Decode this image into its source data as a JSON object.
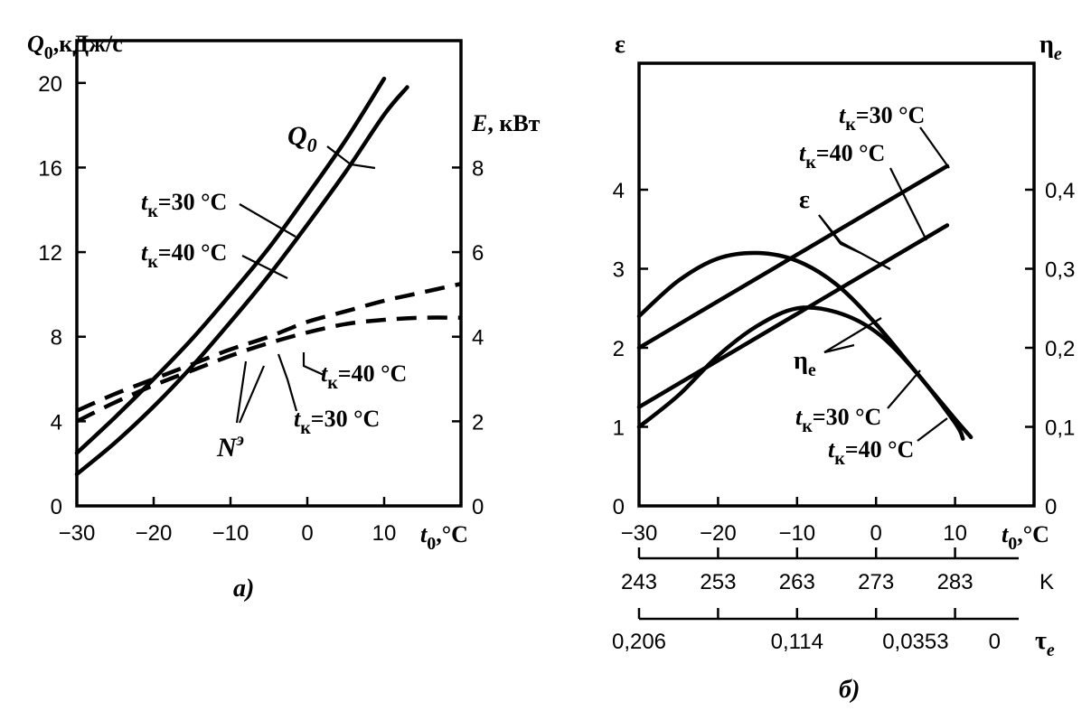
{
  "chart_data": [
    {
      "type": "line",
      "caption": "a)",
      "x_axis": {
        "label": "t",
        "label_sub": "0",
        "label_unit": ",°C",
        "range": [
          -30,
          20
        ],
        "ticks": [
          -30,
          -20,
          -10,
          0,
          10
        ]
      },
      "y_left": {
        "label": "Q",
        "label_sub": "0",
        "label_unit": ",кДж/с",
        "range": [
          0,
          22
        ],
        "ticks": [
          0,
          4,
          8,
          12,
          16,
          20
        ]
      },
      "y_right": {
        "label": "E",
        "label_unit": ", кВт",
        "range": [
          0,
          11
        ],
        "ticks": [
          0,
          2,
          4,
          6,
          8
        ]
      },
      "series": [
        {
          "name": "Q0, tк=30 °C",
          "axis": "left",
          "style": "solid",
          "x": [
            -30,
            -25,
            -20,
            -15,
            -10,
            -5,
            0,
            5,
            10
          ],
          "y": [
            2.5,
            4.2,
            6.0,
            7.9,
            10.0,
            12.2,
            14.7,
            17.3,
            20.2
          ]
        },
        {
          "name": "Q0, tк=40 °C",
          "axis": "left",
          "style": "solid",
          "x": [
            -30,
            -25,
            -20,
            -15,
            -10,
            -5,
            0,
            5,
            10,
            13
          ],
          "y": [
            1.5,
            3.0,
            4.7,
            6.6,
            8.7,
            10.9,
            13.3,
            15.8,
            18.5,
            19.8
          ]
        },
        {
          "name": "Nэ, tк=40 °C",
          "axis": "right",
          "style": "dashed",
          "x": [
            -30,
            -25,
            -20,
            -15,
            -10,
            -5,
            0,
            5,
            10,
            15,
            20
          ],
          "y": [
            2.25,
            2.65,
            3.0,
            3.35,
            3.7,
            4.0,
            4.35,
            4.6,
            4.85,
            5.05,
            5.25
          ]
        },
        {
          "name": "Nэ, tк=30 °C",
          "axis": "right",
          "style": "dashed",
          "x": [
            -30,
            -25,
            -20,
            -15,
            -10,
            -5,
            0,
            5,
            10,
            15,
            20
          ],
          "y": [
            2.0,
            2.45,
            2.85,
            3.2,
            3.55,
            3.85,
            4.1,
            4.3,
            4.4,
            4.45,
            4.45
          ]
        }
      ],
      "annotations": [
        {
          "text": "Q",
          "sub": "0"
        },
        {
          "text": "t",
          "sub": "к",
          "rest": "=30 °C"
        },
        {
          "text": "t",
          "sub": "к",
          "rest": "=40 °C"
        },
        {
          "text": "t",
          "sub": "к",
          "rest": "=40 °C"
        },
        {
          "text": "t",
          "sub": "к",
          "rest": "=30 °C"
        },
        {
          "text": "N",
          "sup": "э"
        }
      ]
    },
    {
      "type": "line",
      "caption": "б)",
      "x_axis": {
        "label": "t",
        "label_sub": "0",
        "label_unit": ",°C",
        "range": [
          -30,
          20
        ],
        "ticks": [
          -30,
          -20,
          -10,
          0,
          10
        ]
      },
      "x_axis_K": {
        "label": "K",
        "ticks": [
          "243",
          "253",
          "263",
          "273",
          "283"
        ]
      },
      "x_axis_tau": {
        "label": "τ",
        "label_sub": "e",
        "ticks": [
          "0,206",
          "0,114",
          "0,0353",
          "0"
        ]
      },
      "y_left": {
        "label": "ε",
        "range": [
          0,
          5.6
        ],
        "ticks": [
          0,
          1,
          2,
          3,
          4
        ]
      },
      "y_right": {
        "label": "η",
        "label_sub": "e",
        "range": [
          0,
          0.56
        ],
        "ticks": [
          "0",
          "0,1",
          "0,2",
          "0,3",
          "0,4"
        ]
      },
      "series": [
        {
          "name": "ε, tк=30 °C",
          "axis": "left",
          "style": "solid",
          "x": [
            -30,
            9
          ],
          "y": [
            2.0,
            4.3
          ]
        },
        {
          "name": "ε, tк=40 °C",
          "axis": "left",
          "style": "solid",
          "x": [
            -30,
            9
          ],
          "y": [
            1.25,
            3.55
          ]
        },
        {
          "name": "ηe, tк=30 °C",
          "axis": "right",
          "style": "solid",
          "x": [
            -30,
            -25,
            -20,
            -15,
            -10,
            -5,
            0,
            5,
            10,
            12
          ],
          "y": [
            0.24,
            0.285,
            0.313,
            0.32,
            0.31,
            0.28,
            0.23,
            0.17,
            0.11,
            0.087
          ]
        },
        {
          "name": "ηe, tк=40 °C",
          "axis": "right",
          "style": "solid",
          "x": [
            -30,
            -25,
            -20,
            -15,
            -10,
            -5,
            0,
            5,
            10,
            11
          ],
          "y": [
            0.1,
            0.14,
            0.19,
            0.228,
            0.25,
            0.245,
            0.22,
            0.17,
            0.105,
            0.085
          ]
        }
      ],
      "annotations": [
        {
          "text": "t",
          "sub": "к",
          "rest": "=30 °C"
        },
        {
          "text": "t",
          "sub": "к",
          "rest": "=40 °C"
        },
        {
          "text": "ε"
        },
        {
          "text": "η",
          "sub": "e"
        },
        {
          "text": "t",
          "sub": "к",
          "rest": "=30 °C"
        },
        {
          "text": "t",
          "sub": "к",
          "rest": "=40 °C"
        }
      ]
    }
  ]
}
